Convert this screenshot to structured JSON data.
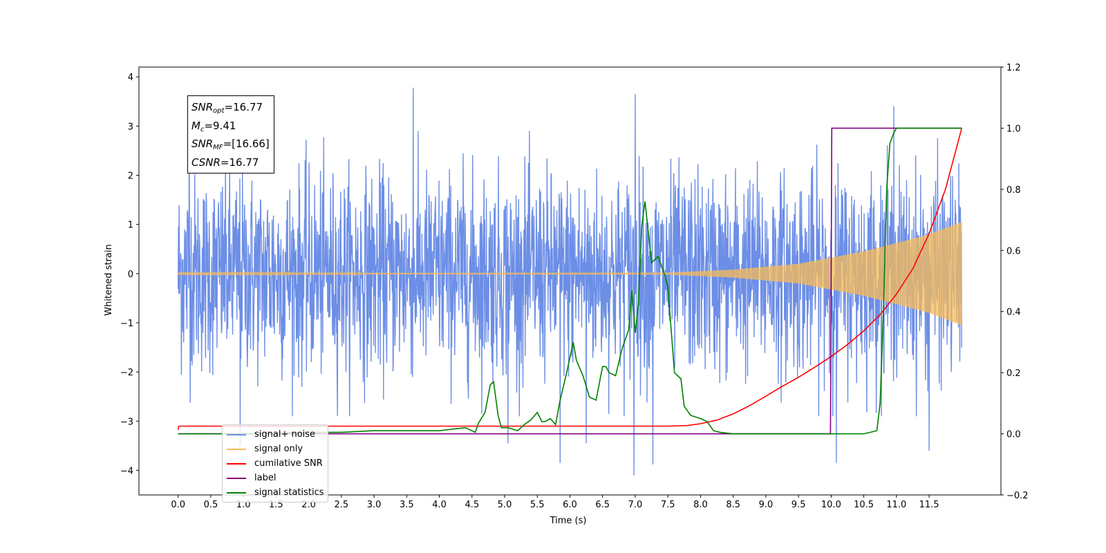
{
  "chart_data": {
    "type": "line",
    "xlabel": "Time (s)",
    "ylabel": "Whitened strain",
    "xlim": [
      -0.6,
      12.6
    ],
    "ylim": [
      -4.5,
      4.2
    ],
    "y2lim": [
      -0.2,
      1.2
    ],
    "x_ticks": [
      "0.0",
      "0.5",
      "1.0",
      "1.5",
      "2.0",
      "2.5",
      "3.0",
      "3.5",
      "4.0",
      "4.5",
      "5.0",
      "5.5",
      "6.0",
      "6.5",
      "7.0",
      "7.5",
      "8.0",
      "8.5",
      "9.0",
      "9.5",
      "10.0",
      "10.5",
      "11.0",
      "11.5"
    ],
    "y_ticks": [
      "−4",
      "−3",
      "−2",
      "−1",
      "0",
      "1",
      "2",
      "3",
      "4"
    ],
    "y2_ticks": [
      "−0.2",
      "0.0",
      "0.2",
      "0.4",
      "0.6",
      "0.8",
      "1.0",
      "1.2"
    ],
    "annotations": [
      {
        "label": "SNR",
        "sub": "opt",
        "value": "=16.77"
      },
      {
        "label": "M",
        "sub": "c",
        "value": "=9.41"
      },
      {
        "label": "SNR",
        "sub": "MF",
        "value": "=[16.66]"
      },
      {
        "label": "CSNR",
        "sub": "",
        "value": "=16.77"
      }
    ],
    "series": [
      {
        "name": "signal+ noise",
        "axis": "left",
        "color": "#6c8ee6",
        "kind": "noise",
        "x_range": [
          0.0,
          12.0
        ],
        "approx_std": 1.0,
        "extremes": [
          [
            0.17,
            3.62
          ],
          [
            3.6,
            3.78
          ],
          [
            7.0,
            3.65
          ],
          [
            10.96,
            3.4
          ],
          [
            6.98,
            -4.1
          ],
          [
            5.85,
            -3.85
          ],
          [
            7.27,
            -3.88
          ],
          [
            10.08,
            -3.85
          ],
          [
            11.5,
            -3.6
          ],
          [
            5.05,
            -3.45
          ],
          [
            6.25,
            -3.45
          ],
          [
            0.95,
            -3.5
          ]
        ]
      },
      {
        "name": "signal only",
        "axis": "left",
        "color": "#f9bb55",
        "kind": "chirp",
        "x_range": [
          0.0,
          12.0
        ],
        "envelope": [
          [
            0.0,
            0.01
          ],
          [
            7.5,
            0.02
          ],
          [
            8.5,
            0.08
          ],
          [
            9.5,
            0.2
          ],
          [
            10.5,
            0.45
          ],
          [
            11.0,
            0.62
          ],
          [
            11.5,
            0.8
          ],
          [
            12.0,
            1.05
          ]
        ]
      },
      {
        "name": "cumilative SNR",
        "axis": "right",
        "color": "#ff0000",
        "x": [
          0.0,
          0.01,
          7.5,
          7.8,
          8.0,
          8.25,
          8.5,
          8.75,
          9.0,
          9.25,
          9.5,
          9.75,
          10.0,
          10.25,
          10.5,
          10.75,
          11.0,
          11.25,
          11.5,
          11.75,
          12.0
        ],
        "y": [
          0.013,
          0.025,
          0.025,
          0.027,
          0.033,
          0.045,
          0.065,
          0.092,
          0.123,
          0.155,
          0.185,
          0.218,
          0.253,
          0.292,
          0.337,
          0.39,
          0.457,
          0.54,
          0.655,
          0.8,
          1.0
        ]
      },
      {
        "name": "label",
        "axis": "right",
        "color": "#800080",
        "x": [
          0.0,
          9.99,
          10.0,
          10.01,
          12.0
        ],
        "y": [
          0.0,
          0.0,
          0.5,
          1.0,
          1.0
        ]
      },
      {
        "name": "signal statistics",
        "axis": "right",
        "color": "#008000",
        "x": [
          0.0,
          1.0,
          2.0,
          2.5,
          3.0,
          3.5,
          4.0,
          4.4,
          4.55,
          4.6,
          4.7,
          4.78,
          4.83,
          4.9,
          4.95,
          5.05,
          5.2,
          5.3,
          5.4,
          5.5,
          5.57,
          5.62,
          5.7,
          5.78,
          5.85,
          5.95,
          6.05,
          6.1,
          6.2,
          6.3,
          6.4,
          6.5,
          6.55,
          6.6,
          6.7,
          6.8,
          6.9,
          6.95,
          7.0,
          7.05,
          7.1,
          7.15,
          7.25,
          7.35,
          7.45,
          7.5,
          7.6,
          7.7,
          7.75,
          7.85,
          8.0,
          8.1,
          8.2,
          8.3,
          8.5,
          9.0,
          10.0,
          10.5,
          10.7,
          10.75,
          10.8,
          10.85,
          10.9,
          10.95,
          11.0,
          11.1,
          11.25,
          12.0
        ],
        "y": [
          0.0,
          0.0,
          0.005,
          0.005,
          0.01,
          0.01,
          0.01,
          0.02,
          0.005,
          0.035,
          0.07,
          0.16,
          0.17,
          0.06,
          0.02,
          0.02,
          0.01,
          0.03,
          0.045,
          0.07,
          0.04,
          0.04,
          0.05,
          0.03,
          0.11,
          0.2,
          0.3,
          0.24,
          0.19,
          0.12,
          0.11,
          0.22,
          0.22,
          0.2,
          0.19,
          0.28,
          0.34,
          0.47,
          0.33,
          0.43,
          0.68,
          0.76,
          0.56,
          0.58,
          0.52,
          0.48,
          0.2,
          0.18,
          0.09,
          0.06,
          0.05,
          0.04,
          0.01,
          0.005,
          0.0,
          0.0,
          0.0,
          0.0,
          0.01,
          0.1,
          0.4,
          0.8,
          0.95,
          0.98,
          1.0,
          1.0,
          1.0,
          1.0
        ]
      }
    ],
    "legend": {
      "placement": "lower-left",
      "entries": [
        {
          "label": "signal+ noise",
          "color": "#6c8ee6"
        },
        {
          "label": "signal only",
          "color": "#f9bb55"
        },
        {
          "label": "cumilative SNR",
          "color": "#ff0000"
        },
        {
          "label": "label",
          "color": "#800080"
        },
        {
          "label": "signal statistics",
          "color": "#008000"
        }
      ]
    }
  }
}
